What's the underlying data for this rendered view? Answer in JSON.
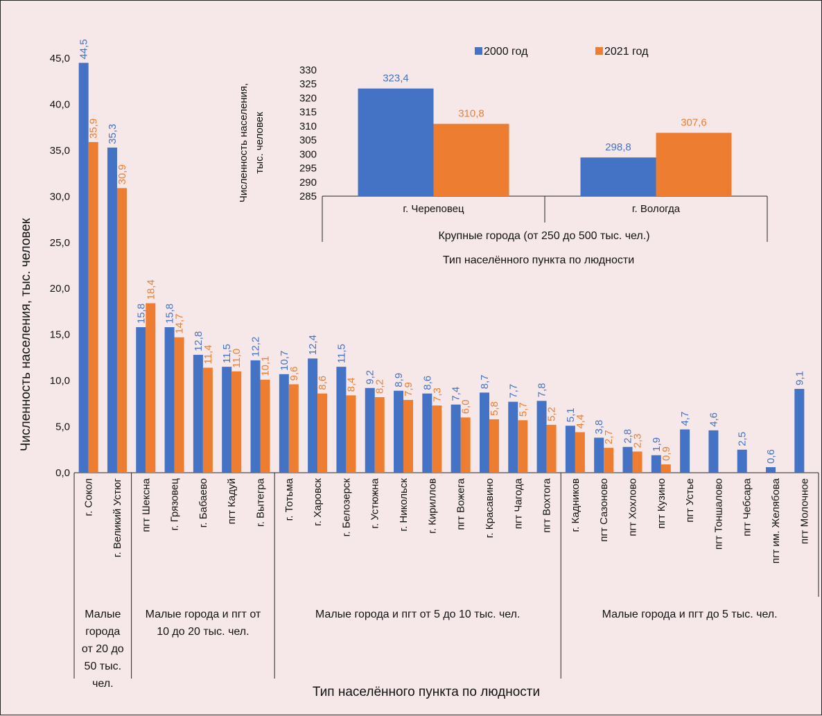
{
  "colors": {
    "y2000": "#4472c4",
    "y2021": "#ed7d31",
    "background": "#f6e8e8"
  },
  "legend": {
    "y2000": "2000 год",
    "y2021": "2021 год"
  },
  "chart_data": [
    {
      "type": "bar",
      "ylabel": "Численность населения, тыс. человек",
      "xlabel": "Тип населённого пункта по людности",
      "ylim": [
        0,
        45
      ],
      "yticks": [
        "0,0",
        "5,0",
        "10,0",
        "15,0",
        "20,0",
        "25,0",
        "30,0",
        "35,0",
        "40,0",
        "45,0"
      ],
      "categories": [
        "г. Сокол",
        "г. Великий Устюг",
        "пгт Шексна",
        "г. Грязовец",
        "г. Бабаево",
        "пгт Кадуй",
        "г. Вытегра",
        "г. Тотьма",
        "г. Харовск",
        "г. Белозерск",
        "г. Устюжна",
        "г. Никольск",
        "г. Кириллов",
        "пгт Вожега",
        "г. Красавино",
        "пгт Чагода",
        "пгт Вохтога",
        "г. Кадников",
        "пгт Сазоново",
        "пгт Хохлово",
        "пгт Кузино",
        "пгт Устье",
        "пгт Тоншалово",
        "пгт Чебсара",
        "пгт им. Желябова",
        "пгт Молочное"
      ],
      "groups": [
        {
          "label": "Малые города от 20 до 50 тыс. чел.",
          "lines": [
            "Малые",
            "города",
            "от 20 до",
            "50 тыс.",
            "чел."
          ],
          "count": 2
        },
        {
          "label": "Малые города и пгт от 10 до 20 тыс. чел.",
          "lines": [
            "Малые города и пгт от",
            "10 до 20 тыс. чел."
          ],
          "count": 5
        },
        {
          "label": "Малые города и пгт от 5 до 10 тыс. чел.",
          "lines": [
            "Малые города и пгт от 5 до 10 тыс. чел."
          ],
          "count": 10
        },
        {
          "label": "Малые города и пгт до 5 тыс. чел.",
          "lines": [
            "Малые города и пгт до 5 тыс. чел."
          ],
          "count": 9
        }
      ],
      "series": [
        {
          "name": "2000 год",
          "values": [
            44.5,
            35.3,
            15.8,
            15.8,
            12.8,
            11.5,
            12.2,
            10.7,
            12.4,
            11.5,
            9.2,
            8.9,
            8.6,
            7.4,
            8.7,
            7.7,
            7.8,
            5.1,
            3.8,
            2.8,
            1.9,
            4.7,
            4.6,
            2.5,
            0.6,
            9.1
          ],
          "labels": [
            "44,5",
            "35,3",
            "15,8",
            "15,8",
            "12,8",
            "11,5",
            "12,2",
            "10,7",
            "12,4",
            "11,5",
            "9,2",
            "8,9",
            "8,6",
            "7,4",
            "8,7",
            "7,7",
            "7,8",
            "5,1",
            "3,8",
            "2,8",
            "1,9",
            "4,7",
            "4,6",
            "2,5",
            "0,6",
            "9,1"
          ]
        },
        {
          "name": "2021 год",
          "values": [
            35.9,
            30.9,
            18.4,
            14.7,
            11.4,
            11.0,
            10.1,
            9.6,
            8.6,
            8.4,
            8.2,
            7.9,
            7.3,
            6.0,
            5.8,
            5.7,
            5.2,
            4.4,
            2.7,
            2.3,
            0.9,
            null,
            null,
            null,
            null,
            null
          ],
          "labels": [
            "35,9",
            "30,9",
            "18,4",
            "14,7",
            "11,4",
            "11,0",
            "10,1",
            "9,6",
            "8,6",
            "8,4",
            "8,2",
            "7,9",
            "7,3",
            "6,0",
            "5,8",
            "5,7",
            "5,2",
            "4,4",
            "2,7",
            "2,3",
            "0,9",
            null,
            null,
            null,
            null,
            null
          ]
        }
      ]
    },
    {
      "type": "bar",
      "ylabel": "Численность населения, тыс. человек",
      "ylabel_lines": [
        "Численность населения,",
        "тыс. человек"
      ],
      "xlabel": "Тип населённого пункта по людности",
      "ylim": [
        285,
        330
      ],
      "yticks": [
        "285",
        "290",
        "295",
        "300",
        "305",
        "310",
        "315",
        "320",
        "325",
        "330"
      ],
      "categories": [
        "г. Череповец",
        "г. Вологда"
      ],
      "group_label": "Крупные города (от 250 до 500 тыс. чел.)",
      "series": [
        {
          "name": "2000 год",
          "values": [
            323.4,
            298.8
          ],
          "labels": [
            "323,4",
            "298,8"
          ]
        },
        {
          "name": "2021 год",
          "values": [
            310.8,
            307.6
          ],
          "labels": [
            "310,8",
            "307,6"
          ]
        }
      ]
    }
  ]
}
